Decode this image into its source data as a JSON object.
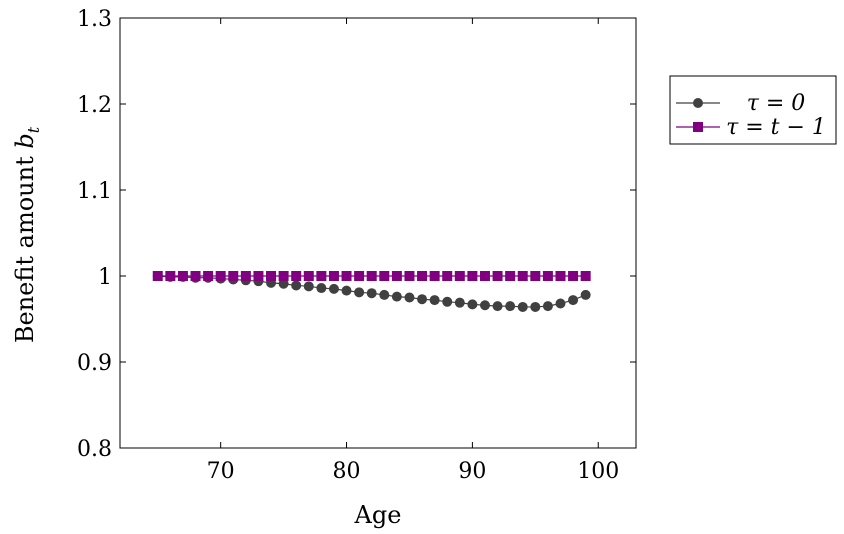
{
  "chart_data": {
    "type": "line",
    "title": "",
    "xlabel": "Age",
    "ylabel": "Benefit amount b_t",
    "xlim": [
      62,
      103
    ],
    "ylim": [
      0.8,
      1.3
    ],
    "xticks": [
      70,
      80,
      90,
      100
    ],
    "yticks": [
      0.8,
      0.9,
      1.0,
      1.1,
      1.2,
      1.3
    ],
    "ytick_labels": [
      "0.8",
      "0.9",
      "1",
      "1.1",
      "1.2",
      "1.3"
    ],
    "xtick_labels": [
      "70",
      "80",
      "90",
      "100"
    ],
    "grid": false,
    "legend_position": "outside-right-top",
    "x": [
      65,
      66,
      67,
      68,
      69,
      70,
      71,
      72,
      73,
      74,
      75,
      76,
      77,
      78,
      79,
      80,
      81,
      82,
      83,
      84,
      85,
      86,
      87,
      88,
      89,
      90,
      91,
      92,
      93,
      94,
      95,
      96,
      97,
      98,
      99
    ],
    "series": [
      {
        "name": "τ = 0",
        "color": "#404040",
        "marker": "circle",
        "values": [
          1.0,
          0.999,
          0.999,
          0.998,
          0.998,
          0.997,
          0.996,
          0.995,
          0.994,
          0.992,
          0.991,
          0.989,
          0.988,
          0.986,
          0.985,
          0.983,
          0.981,
          0.98,
          0.978,
          0.976,
          0.975,
          0.973,
          0.972,
          0.97,
          0.969,
          0.967,
          0.966,
          0.965,
          0.965,
          0.964,
          0.964,
          0.965,
          0.968,
          0.972,
          0.978
        ]
      },
      {
        "name": "τ = t − 1",
        "color": "#800080",
        "marker": "square",
        "values": [
          1,
          1,
          1,
          1,
          1,
          1,
          1,
          1,
          1,
          1,
          1,
          1,
          1,
          1,
          1,
          1,
          1,
          1,
          1,
          1,
          1,
          1,
          1,
          1,
          1,
          1,
          1,
          1,
          1,
          1,
          1,
          1,
          1,
          1,
          1
        ]
      }
    ]
  }
}
